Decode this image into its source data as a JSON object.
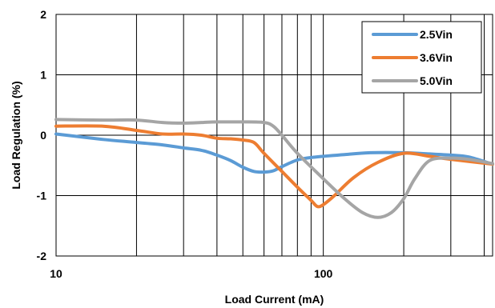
{
  "chart_data": {
    "type": "line",
    "title": "",
    "xlabel": "Load Current (mA)",
    "ylabel": "Load Regulation (%)",
    "x_scale": "log",
    "xlim": [
      10,
      430
    ],
    "ylim": [
      -2,
      2
    ],
    "x_ticks": [
      {
        "value": 10,
        "label": "10"
      },
      {
        "value": 100,
        "label": "100"
      }
    ],
    "y_ticks": [
      {
        "value": 2,
        "label": "2"
      },
      {
        "value": 1,
        "label": "1"
      },
      {
        "value": 0,
        "label": "0"
      },
      {
        "value": -1,
        "label": "-1"
      },
      {
        "value": -2,
        "label": "-2"
      }
    ],
    "grid": true,
    "legend_position": "top-right",
    "series": [
      {
        "name": "2.5Vin",
        "color": "#5b9bd5",
        "x": [
          10,
          15,
          20,
          25,
          30,
          35,
          40,
          45,
          50,
          55,
          60,
          65,
          70,
          80,
          90,
          100,
          120,
          150,
          200,
          250,
          300,
          350,
          430
        ],
        "y": [
          0.02,
          -0.07,
          -0.12,
          -0.16,
          -0.21,
          -0.25,
          -0.33,
          -0.42,
          -0.53,
          -0.6,
          -0.61,
          -0.59,
          -0.52,
          -0.41,
          -0.37,
          -0.35,
          -0.32,
          -0.29,
          -0.29,
          -0.31,
          -0.33,
          -0.36,
          -0.48
        ]
      },
      {
        "name": "3.6Vin",
        "color": "#ed7d31",
        "x": [
          10,
          15,
          20,
          25,
          30,
          35,
          40,
          45,
          50,
          55,
          60,
          70,
          80,
          90,
          95,
          100,
          110,
          130,
          160,
          200,
          250,
          300,
          430
        ],
        "y": [
          0.15,
          0.15,
          0.08,
          0.02,
          0.02,
          0.0,
          -0.05,
          -0.06,
          -0.08,
          -0.12,
          -0.3,
          -0.6,
          -0.86,
          -1.08,
          -1.18,
          -1.15,
          -1.0,
          -0.7,
          -0.45,
          -0.3,
          -0.35,
          -0.4,
          -0.48
        ]
      },
      {
        "name": "5.0Vin",
        "color": "#a5a5a5",
        "x": [
          10,
          15,
          20,
          25,
          30,
          35,
          40,
          50,
          60,
          65,
          70,
          80,
          100,
          120,
          140,
          160,
          180,
          200,
          220,
          250,
          300,
          350,
          430
        ],
        "y": [
          0.26,
          0.25,
          0.25,
          0.21,
          0.2,
          0.21,
          0.22,
          0.22,
          0.21,
          0.15,
          0.0,
          -0.3,
          -0.72,
          -1.05,
          -1.28,
          -1.36,
          -1.28,
          -1.05,
          -0.72,
          -0.42,
          -0.38,
          -0.4,
          -0.47
        ]
      }
    ]
  }
}
